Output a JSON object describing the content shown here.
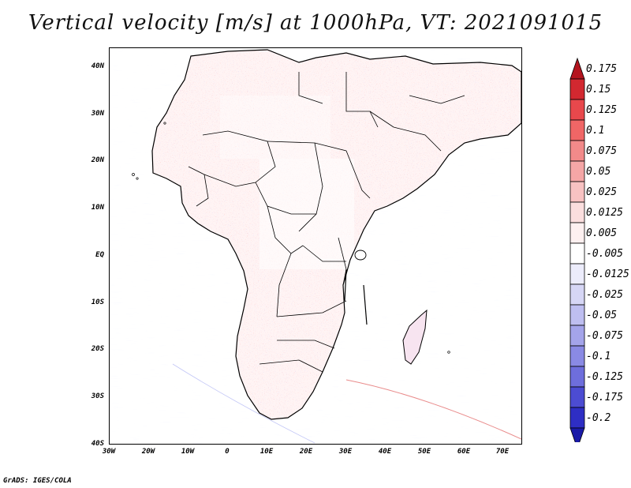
{
  "title": "Vertical velocity [m/s] at 1000hPa, VT: 2021091015",
  "credit": "GrADS: IGES/COLA",
  "lat_labels": [
    "40N",
    "30N",
    "20N",
    "10N",
    "EQ",
    "10S",
    "20S",
    "30S",
    "40S"
  ],
  "lon_labels": [
    "30W",
    "20W",
    "10W",
    "0",
    "10E",
    "20E",
    "30E",
    "40E",
    "50E",
    "60E",
    "70E"
  ],
  "colorbar": {
    "labels": [
      "0.175",
      "0.15",
      "0.125",
      "0.1",
      "0.075",
      "0.05",
      "0.025",
      "0.0125",
      "0.005",
      "-0.005",
      "-0.0125",
      "-0.025",
      "-0.05",
      "-0.075",
      "-0.1",
      "-0.125",
      "-0.175",
      "-0.2"
    ],
    "colors": [
      "#b4141e",
      "#d22830",
      "#e8484c",
      "#f06666",
      "#f28a8a",
      "#f5a6a6",
      "#f8c2c2",
      "#fbdede",
      "#fdf0f0",
      "#ffffff",
      "#ececfb",
      "#d6d6f5",
      "#bebef0",
      "#a4a4ea",
      "#8a8ae4",
      "#6e6edc",
      "#4c4cd2",
      "#2e2ec4",
      "#1a1aa8"
    ]
  },
  "map_data": {
    "variable": "Vertical velocity",
    "units": "m/s",
    "level": "1000hPa",
    "valid_time": "2021091015",
    "lon_range": [
      -30,
      75
    ],
    "lat_range": [
      -40,
      45
    ]
  }
}
